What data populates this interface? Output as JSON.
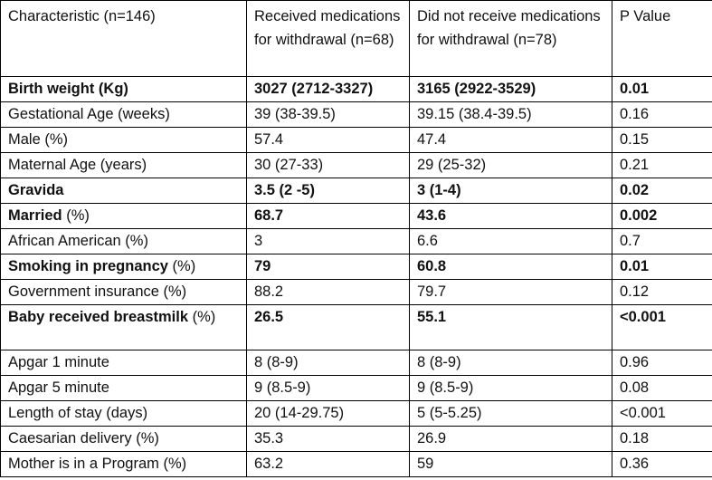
{
  "table": {
    "headers": [
      "Characteristic (n=146)",
      "Received medications for withdrawal (n=68)",
      "Did not receive medications for withdrawal (n=78)",
      "P Value"
    ],
    "rows": [
      {
        "label_bold": "Birth weight (Kg)",
        "label_rest": "",
        "received": "3027 (2712-3327)",
        "not_received": "3165 (2922-3529)",
        "p_value": "0.01",
        "bold": true
      },
      {
        "label_bold": "",
        "label_rest": "Gestational Age (weeks)",
        "received": "39 (38-39.5)",
        "not_received": "39.15 (38.4-39.5)",
        "p_value": "0.16",
        "bold": false
      },
      {
        "label_bold": "",
        "label_rest": "Male (%)",
        "received": "57.4",
        "not_received": "47.4",
        "p_value": "0.15",
        "bold": false
      },
      {
        "label_bold": "",
        "label_rest": "Maternal Age (years)",
        "received": "30 (27-33)",
        "not_received": "29 (25-32)",
        "p_value": "0.21",
        "bold": false
      },
      {
        "label_bold": "Gravida",
        "label_rest": "",
        "received": "3.5 (2 -5)",
        "not_received": "3 (1-4)",
        "p_value": "0.02",
        "bold": true
      },
      {
        "label_bold": "Married",
        "label_rest": " (%)",
        "received": "68.7",
        "not_received": "43.6",
        "p_value": "0.002",
        "bold": true
      },
      {
        "label_bold": "",
        "label_rest": "African American (%)",
        "received": "3",
        "not_received": "6.6",
        "p_value": "0.7",
        "bold": false
      },
      {
        "label_bold": "Smoking in pregnancy",
        "label_rest": " (%)",
        "received": "79",
        "not_received": "60.8",
        "p_value": "0.01",
        "bold": true
      },
      {
        "label_bold": "",
        "label_rest": "Government insurance (%)",
        "received": "88.2",
        "not_received": "79.7",
        "p_value": "0.12",
        "bold": false
      },
      {
        "label_bold": "Baby received breastmilk",
        "label_rest": " (%)",
        "received": "26.5",
        "not_received": "55.1",
        "p_value": "<0.001",
        "bold": true
      },
      {
        "label_bold": "",
        "label_rest": "Apgar 1 minute",
        "received": "8 (8-9)",
        "not_received": "8 (8-9)",
        "p_value": "0.96",
        "bold": false
      },
      {
        "label_bold": "",
        "label_rest": "Apgar 5 minute",
        "received": "9 (8.5-9)",
        "not_received": "9 (8.5-9)",
        "p_value": "0.08",
        "bold": false
      },
      {
        "label_bold": "",
        "label_rest": "Length of stay (days)",
        "received": "20 (14-29.75)",
        "not_received": "5 (5-5.25)",
        "p_value": "<0.001",
        "bold": false
      },
      {
        "label_bold": "",
        "label_rest": "Caesarian delivery (%)",
        "received": "35.3",
        "not_received": "26.9",
        "p_value": "0.18",
        "bold": false
      },
      {
        "label_bold": "",
        "label_rest": "Mother is in a Program (%)",
        "received": "63.2",
        "not_received": "59",
        "p_value": "0.36",
        "bold": false
      }
    ]
  }
}
